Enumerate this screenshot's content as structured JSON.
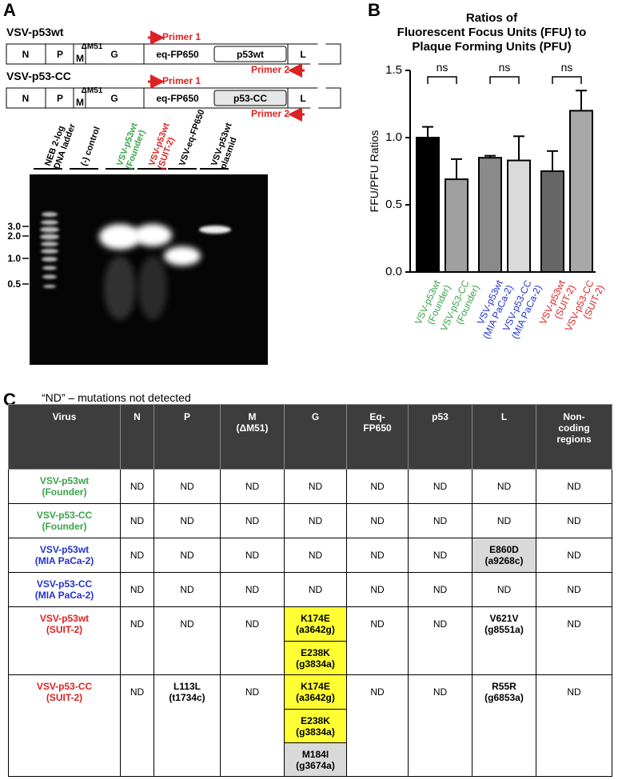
{
  "panel_labels": [
    "A",
    "B",
    "C"
  ],
  "panel_a": {
    "constructs": [
      {
        "name": "VSV-p53wt",
        "segments": [
          "N",
          "P",
          "M",
          "ΔM51",
          "G",
          "eq-FP650",
          "p53wt",
          "L"
        ],
        "primers": [
          "Primer 1",
          "Primer 2"
        ]
      },
      {
        "name": "VSV-p53-CC",
        "segments": [
          "N",
          "P",
          "M",
          "ΔM51",
          "G",
          "eq-FP650",
          "p53-CC",
          "L"
        ],
        "primers": [
          "Primer 1",
          "Primer 2"
        ]
      }
    ],
    "gel": {
      "lanes": [
        {
          "label": "NEB 2-log\nDNA ladder",
          "color": "#000000"
        },
        {
          "label": "(-) control",
          "color": "#000000"
        },
        {
          "label": "VSV-p53wt\n(Founder)",
          "color": "#3aa34a"
        },
        {
          "label": "VSV-p53wt\n(SUIT-2)",
          "color": "#dd2222"
        },
        {
          "label": "VSV-eq-FP650",
          "color": "#000000"
        },
        {
          "label": "VSV-p53wt\nplasmid",
          "color": "#000000"
        }
      ],
      "sizes": [
        "3.0",
        "2.0",
        "1.0",
        "0.5"
      ]
    }
  },
  "chart_data": {
    "type": "bar",
    "title": "Ratios of\nFluorescent Focus Units (FFU) to\nPlaque Forming Units (PFU)",
    "ylabel": "FFU/PFU Ratios",
    "categories": [
      "VSV-p53wt\n(Founder)",
      "VSV-p53-CC\n(Founder)",
      "VSV-p53wt\n(MIA PaCa-2)",
      "VSV-p53-CC\n(MIA PaCa-2)",
      "VSV-p53wt\n(SUIT-2)",
      "VSV-p53-CC\n(SUIT-2)"
    ],
    "category_colors": [
      "#3aa34a",
      "#3aa34a",
      "#2233cc",
      "#2233cc",
      "#dd2222",
      "#dd2222"
    ],
    "values": [
      1.0,
      0.69,
      0.85,
      0.83,
      0.75,
      1.2
    ],
    "errors": [
      0.08,
      0.15,
      0.015,
      0.18,
      0.15,
      0.15
    ],
    "colors": [
      "#000000",
      "#a0a0a0",
      "#8a8a8a",
      "#dadada",
      "#666666",
      "#a8a8a8"
    ],
    "annotations": [
      "ns",
      "ns",
      "ns"
    ],
    "ylim": [
      0,
      1.5
    ],
    "yticks": [
      {
        "value": 0,
        "label": "0.0"
      },
      0.5,
      {
        "value": 1,
        "label": "1.0"
      },
      1.5
    ]
  },
  "panel_c": {
    "caption": "“ND” – mutations not detected",
    "header": [
      "Virus",
      "N",
      "P",
      "M\n(ΔM51)",
      "G",
      "Eq-\nFP650",
      "p53",
      "L",
      "Non-\ncoding\nregions"
    ],
    "rows": [
      {
        "virus": "VSV-p53wt\n(Founder)",
        "color": "#3aa34a",
        "cells": [
          [
            "ND"
          ],
          [
            "ND"
          ],
          [
            "ND"
          ],
          [
            "ND"
          ],
          [
            "ND"
          ],
          [
            "ND"
          ],
          [
            "ND"
          ],
          [
            "ND"
          ]
        ]
      },
      {
        "virus": "VSV-p53-CC\n(Founder)",
        "color": "#3aa34a",
        "cells": [
          [
            "ND"
          ],
          [
            "ND"
          ],
          [
            "ND"
          ],
          [
            "ND"
          ],
          [
            "ND"
          ],
          [
            "ND"
          ],
          [
            "ND"
          ],
          [
            "ND"
          ]
        ]
      },
      {
        "virus": "VSV-p53wt\n(MIA PaCa-2)",
        "color": "#2233cc",
        "cells": [
          [
            "ND"
          ],
          [
            "ND"
          ],
          [
            "ND"
          ],
          [
            "ND"
          ],
          [
            "ND"
          ],
          [
            "ND"
          ],
          [
            {
              "text": "E860D\n(a9268c)",
              "fill": "#d9d9d9"
            }
          ],
          [
            "ND"
          ]
        ]
      },
      {
        "virus": "VSV-p53-CC\n(MIA PaCa-2)",
        "color": "#2233cc",
        "cells": [
          [
            "ND"
          ],
          [
            "ND"
          ],
          [
            "ND"
          ],
          [
            "ND"
          ],
          [
            "ND"
          ],
          [
            "ND"
          ],
          [
            "ND"
          ],
          [
            "ND"
          ]
        ]
      },
      {
        "virus": "VSV-p53wt\n(SUIT-2)",
        "color": "#dd2222",
        "cells": [
          [
            "ND"
          ],
          [
            "ND"
          ],
          [
            "ND"
          ],
          [
            {
              "text": "K174E\n(a3642g)",
              "fill": "#ffff33"
            },
            {
              "text": "E238K\n(g3834a)",
              "fill": "#ffff33"
            }
          ],
          [
            "ND"
          ],
          [
            "ND"
          ],
          [
            {
              "text": "V621V\n(g8551a)"
            }
          ],
          [
            "ND"
          ]
        ]
      },
      {
        "virus": "VSV-p53-CC\n(SUIT-2)",
        "color": "#dd2222",
        "cells": [
          [
            "ND"
          ],
          [
            {
              "text": "L113L\n(t1734c)"
            }
          ],
          [
            "ND"
          ],
          [
            {
              "text": "K174E\n(a3642g)",
              "fill": "#ffff33"
            },
            {
              "text": "E238K\n(g3834a)",
              "fill": "#ffff33"
            },
            {
              "text": "M184I\n(g3674a)",
              "fill": "#d9d9d9"
            }
          ],
          [
            "ND"
          ],
          [
            "ND"
          ],
          [
            {
              "text": "R55R\n(g6853a)"
            }
          ],
          [
            "ND"
          ]
        ]
      }
    ]
  }
}
